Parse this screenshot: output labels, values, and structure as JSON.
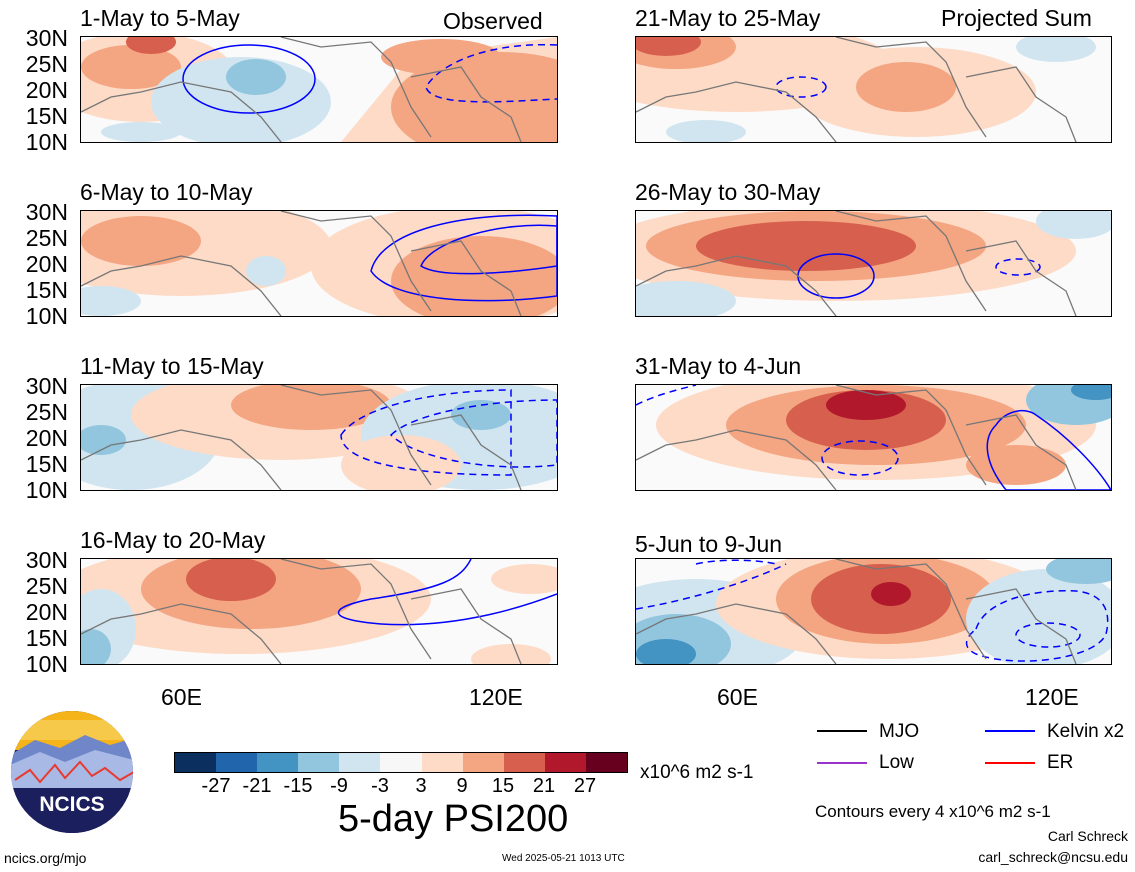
{
  "panels": [
    {
      "title": "1-May to 5-May",
      "corner": "Observed"
    },
    {
      "title": "21-May to 25-May",
      "corner": "Projected Sum"
    },
    {
      "title": "6-May to 10-May",
      "corner": ""
    },
    {
      "title": "26-May to 30-May",
      "corner": ""
    },
    {
      "title": "11-May to 15-May",
      "corner": ""
    },
    {
      "title": "31-May to 4-Jun",
      "corner": ""
    },
    {
      "title": "16-May to 20-May",
      "corner": ""
    },
    {
      "title": "5-Jun to 9-Jun",
      "corner": ""
    }
  ],
  "lat_labels": [
    "30N",
    "25N",
    "20N",
    "15N",
    "10N"
  ],
  "lon_labels": [
    "60E",
    "120E"
  ],
  "colorbar": {
    "colors": [
      "#0b2f5e",
      "#2166ac",
      "#4393c3",
      "#92c5de",
      "#d1e5f0",
      "#f7f7f7",
      "#fddbc7",
      "#f4a582",
      "#d6604d",
      "#b2182b",
      "#67001f"
    ],
    "tick_labels": [
      "-27",
      "-21",
      "-15",
      "-9",
      "-3",
      "3",
      "9",
      "15",
      "21",
      "27"
    ],
    "units": "x10^6 m2 s-1"
  },
  "legend": {
    "mjo": {
      "label": "MJO",
      "color": "#000000"
    },
    "kelvin": {
      "label": "Kelvin x2",
      "color": "#0000ff"
    },
    "low": {
      "label": "Low",
      "color": "#9933cc"
    },
    "er": {
      "label": "ER",
      "color": "#ff0000"
    }
  },
  "main_title": "5-day PSI200",
  "contour_note": "Contours every 4 x10^6 m2 s-1",
  "author": "Carl Schreck",
  "email": "carl_schreck@ncsu.edu",
  "website": "ncics.org/mjo",
  "timestamp": "Wed 2025-05-21 1013 UTC",
  "logo_text": "NCICS"
}
